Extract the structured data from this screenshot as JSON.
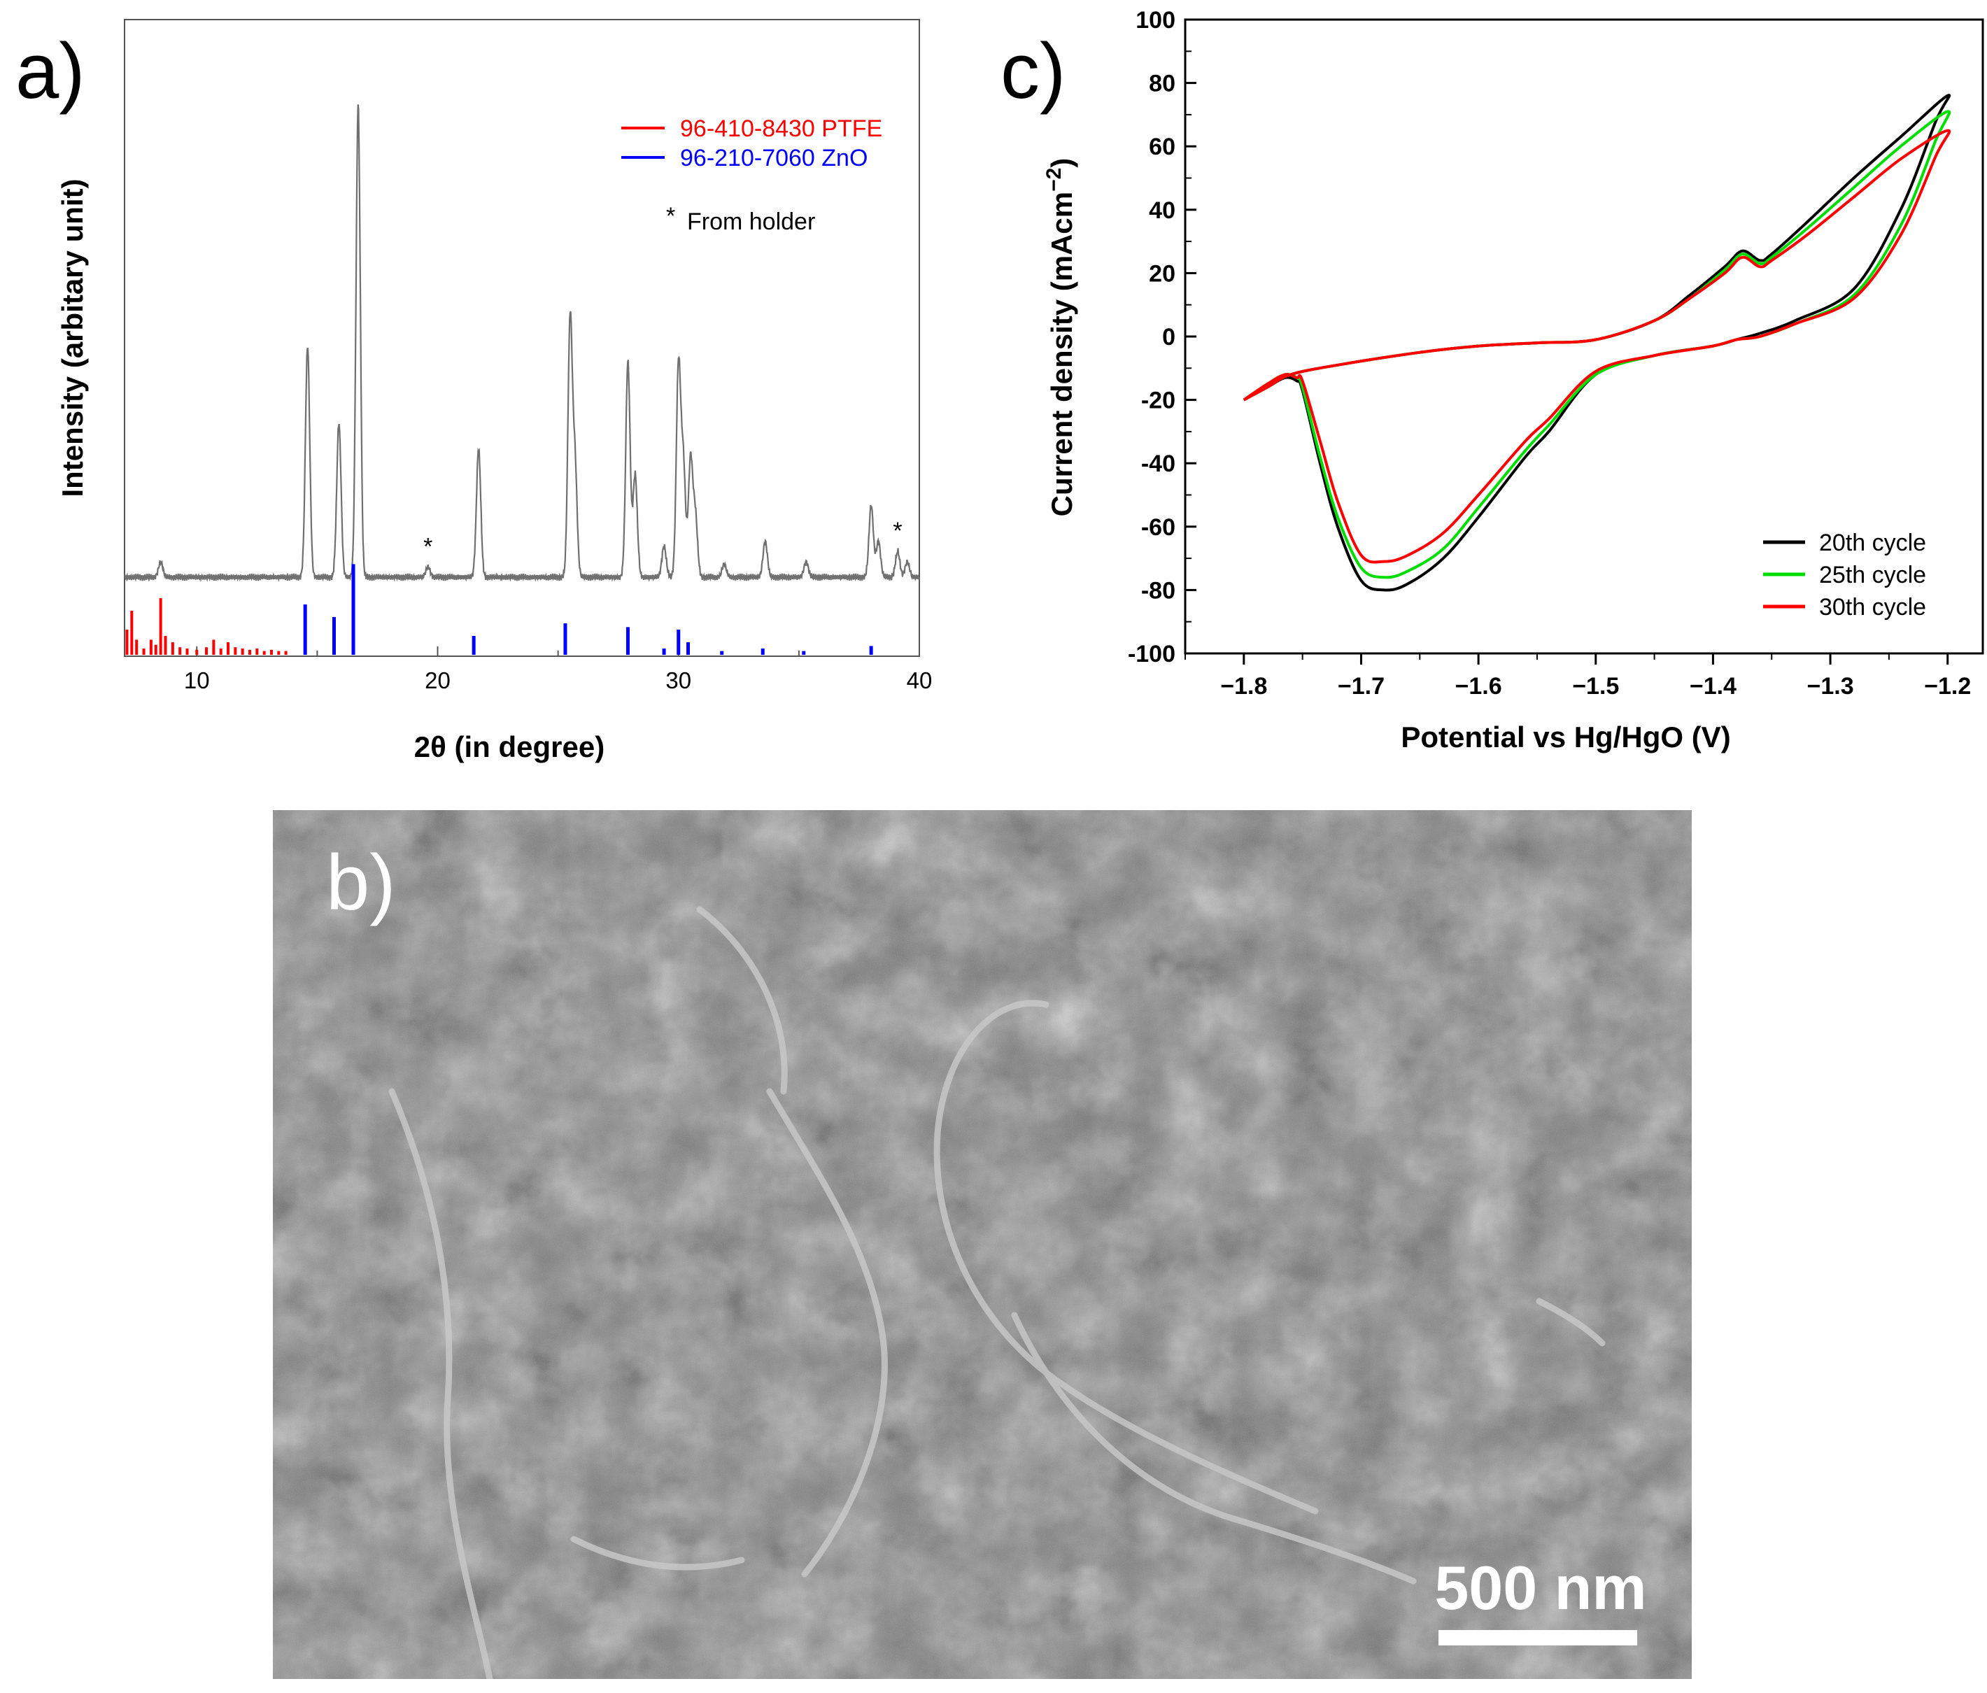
{
  "panels": {
    "a_label": "a)",
    "b_label": "b)",
    "c_label": "c)"
  },
  "chart_data": [
    {
      "panel": "a",
      "type": "line",
      "xlabel": "2θ (in degree)",
      "ylabel": "Intensity (arbitary unit)",
      "xlim": [
        7,
        40
      ],
      "xticks": [
        10,
        20,
        30,
        40
      ],
      "yticks": [],
      "grid": false,
      "legend_position": "top-right",
      "legend": [
        {
          "label": "96-410-8430 PTFE",
          "color": "#ff0000"
        },
        {
          "label": "96-210-7060 ZnO",
          "color": "#0000ff"
        }
      ],
      "annotation": "From holder",
      "annotation_marker": "*",
      "holder_peaks_2theta": [
        19.6,
        39.1
      ],
      "pattern": {
        "baseline": 0.08,
        "peaks": [
          {
            "x": 8.5,
            "h": 0.03
          },
          {
            "x": 14.6,
            "h": 0.45
          },
          {
            "x": 15.9,
            "h": 0.3
          },
          {
            "x": 16.7,
            "h": 0.92
          },
          {
            "x": 19.6,
            "h": 0.02
          },
          {
            "x": 21.7,
            "h": 0.25
          },
          {
            "x": 25.5,
            "h": 0.5
          },
          {
            "x": 25.7,
            "h": 0.22
          },
          {
            "x": 27.9,
            "h": 0.42
          },
          {
            "x": 28.2,
            "h": 0.2
          },
          {
            "x": 29.4,
            "h": 0.06
          },
          {
            "x": 30.0,
            "h": 0.41
          },
          {
            "x": 30.2,
            "h": 0.22
          },
          {
            "x": 30.5,
            "h": 0.23
          },
          {
            "x": 30.7,
            "h": 0.12
          },
          {
            "x": 31.9,
            "h": 0.025
          },
          {
            "x": 33.6,
            "h": 0.07
          },
          {
            "x": 35.3,
            "h": 0.03
          },
          {
            "x": 38.0,
            "h": 0.14
          },
          {
            "x": 38.3,
            "h": 0.07
          },
          {
            "x": 39.1,
            "h": 0.05
          },
          {
            "x": 39.5,
            "h": 0.03
          }
        ]
      },
      "reference_ZnO": [
        {
          "x": 14.5,
          "h": 0.4
        },
        {
          "x": 15.7,
          "h": 0.3
        },
        {
          "x": 16.5,
          "h": 0.72
        },
        {
          "x": 21.5,
          "h": 0.15
        },
        {
          "x": 25.3,
          "h": 0.25
        },
        {
          "x": 27.9,
          "h": 0.22
        },
        {
          "x": 29.4,
          "h": 0.05
        },
        {
          "x": 30.0,
          "h": 0.2
        },
        {
          "x": 30.4,
          "h": 0.1
        },
        {
          "x": 31.8,
          "h": 0.03
        },
        {
          "x": 33.5,
          "h": 0.05
        },
        {
          "x": 35.2,
          "h": 0.03
        },
        {
          "x": 38.0,
          "h": 0.07
        }
      ],
      "reference_PTFE": [
        {
          "x": 7.1,
          "h": 0.2
        },
        {
          "x": 7.3,
          "h": 0.35
        },
        {
          "x": 7.5,
          "h": 0.12
        },
        {
          "x": 7.8,
          "h": 0.05
        },
        {
          "x": 8.1,
          "h": 0.12
        },
        {
          "x": 8.3,
          "h": 0.08
        },
        {
          "x": 8.5,
          "h": 0.45
        },
        {
          "x": 8.7,
          "h": 0.15
        },
        {
          "x": 9.0,
          "h": 0.1
        },
        {
          "x": 9.3,
          "h": 0.06
        },
        {
          "x": 9.6,
          "h": 0.05
        },
        {
          "x": 10.0,
          "h": 0.04
        },
        {
          "x": 10.4,
          "h": 0.06
        },
        {
          "x": 10.7,
          "h": 0.12
        },
        {
          "x": 11.0,
          "h": 0.05
        },
        {
          "x": 11.3,
          "h": 0.1
        },
        {
          "x": 11.6,
          "h": 0.06
        },
        {
          "x": 11.9,
          "h": 0.05
        },
        {
          "x": 12.2,
          "h": 0.04
        },
        {
          "x": 12.5,
          "h": 0.05
        },
        {
          "x": 12.8,
          "h": 0.03
        },
        {
          "x": 13.1,
          "h": 0.04
        },
        {
          "x": 13.4,
          "h": 0.03
        },
        {
          "x": 13.7,
          "h": 0.03
        }
      ]
    },
    {
      "panel": "c",
      "type": "line",
      "xlabel": "Potential vs Hg/HgO (V)",
      "ylabel": "Current density (mAcm−2)",
      "xlim": [
        -1.85,
        -1.17
      ],
      "ylim": [
        -100,
        100
      ],
      "xticks": [
        -1.8,
        -1.7,
        -1.6,
        -1.5,
        -1.4,
        -1.3,
        -1.2
      ],
      "xtick_labels": [
        "−1.8",
        "−1.7",
        "−1.6",
        "−1.5",
        "−1.4",
        "−1.3",
        "−1.2"
      ],
      "yticks": [
        -100,
        -80,
        -60,
        -40,
        -20,
        0,
        20,
        40,
        60,
        80,
        100
      ],
      "grid": false,
      "legend_position": "bottom-right",
      "series": [
        {
          "name": "20th cycle",
          "color": "#000000",
          "x": [
            -1.8,
            -1.78,
            -1.76,
            -1.72,
            -1.65,
            -1.6,
            -1.55,
            -1.5,
            -1.45,
            -1.42,
            -1.39,
            -1.375,
            -1.36,
            -1.35,
            -1.32,
            -1.28,
            -1.24,
            -1.2,
            -1.21,
            -1.24,
            -1.28,
            -1.33,
            -1.36,
            -1.38,
            -1.4,
            -1.45,
            -1.5,
            -1.54,
            -1.56,
            -1.6,
            -1.63,
            -1.66,
            -1.68,
            -1.7,
            -1.72,
            -1.735,
            -1.75,
            -1.755,
            -1.765,
            -1.78,
            -1.8
          ],
          "y": [
            -20,
            -16,
            -12,
            -9,
            -5,
            -3,
            -2,
            -1,
            5,
            13,
            22,
            27,
            24,
            26,
            36,
            50,
            63,
            76,
            68,
            40,
            15,
            5,
            1,
            -1,
            -3,
            -6,
            -12,
            -30,
            -38,
            -57,
            -70,
            -78,
            -80,
            -77,
            -60,
            -40,
            -17,
            -14,
            -13,
            -16,
            -20
          ]
        },
        {
          "name": "25th cycle",
          "color": "#00dd00",
          "x": [
            -1.8,
            -1.78,
            -1.76,
            -1.72,
            -1.65,
            -1.6,
            -1.55,
            -1.5,
            -1.45,
            -1.42,
            -1.39,
            -1.375,
            -1.36,
            -1.35,
            -1.32,
            -1.28,
            -1.24,
            -1.2,
            -1.21,
            -1.24,
            -1.28,
            -1.33,
            -1.36,
            -1.38,
            -1.4,
            -1.45,
            -1.5,
            -1.54,
            -1.56,
            -1.6,
            -1.63,
            -1.66,
            -1.68,
            -1.7,
            -1.72,
            -1.735,
            -1.75,
            -1.755,
            -1.765,
            -1.78,
            -1.8
          ],
          "y": [
            -20,
            -16,
            -12,
            -9,
            -5,
            -3,
            -2,
            -1,
            5,
            12,
            21,
            26,
            23,
            25,
            34,
            47,
            60,
            71,
            62,
            35,
            13,
            4,
            0,
            -1,
            -3,
            -6,
            -12,
            -28,
            -36,
            -54,
            -67,
            -74,
            -76,
            -73,
            -57,
            -38,
            -16,
            -13,
            -12,
            -15,
            -20
          ]
        },
        {
          "name": "30th cycle",
          "color": "#ff0000",
          "x": [
            -1.8,
            -1.78,
            -1.76,
            -1.72,
            -1.65,
            -1.6,
            -1.55,
            -1.5,
            -1.45,
            -1.42,
            -1.39,
            -1.375,
            -1.36,
            -1.35,
            -1.32,
            -1.28,
            -1.24,
            -1.2,
            -1.21,
            -1.24,
            -1.28,
            -1.33,
            -1.36,
            -1.38,
            -1.4,
            -1.45,
            -1.5,
            -1.54,
            -1.56,
            -1.6,
            -1.63,
            -1.66,
            -1.68,
            -1.7,
            -1.72,
            -1.735,
            -1.75,
            -1.755,
            -1.765,
            -1.78,
            -1.8
          ],
          "y": [
            -20,
            -16,
            -12,
            -9,
            -5,
            -3,
            -2,
            -1,
            5,
            12,
            20,
            25,
            22,
            24,
            32,
            44,
            56,
            65,
            57,
            32,
            12,
            4,
            0,
            -1,
            -3,
            -6,
            -11,
            -26,
            -33,
            -50,
            -62,
            -69,
            -71,
            -69,
            -52,
            -33,
            -14,
            -13,
            -12,
            -15,
            -20
          ]
        }
      ]
    }
  ],
  "sem": {
    "scale_label": "500 nm"
  }
}
